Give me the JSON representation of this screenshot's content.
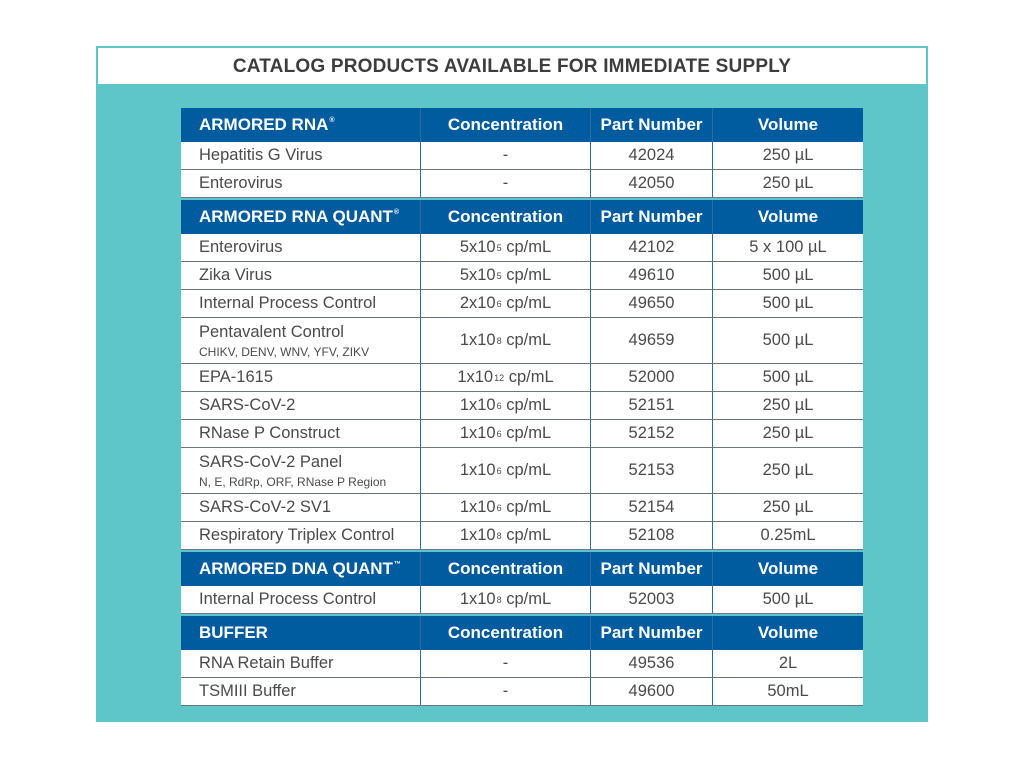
{
  "title": "CATALOG PRODUCTS AVAILABLE FOR IMMEDIATE SUPPLY",
  "colors": {
    "panel": "#5ec6c9",
    "header": "#005b9f"
  },
  "columns": [
    "Concentration",
    "Part Number",
    "Volume"
  ],
  "sections": [
    {
      "name": "ARMORED RNA",
      "mark": "®",
      "rows": [
        {
          "product": "Hepatitis G Virus",
          "conc": {
            "text": "-"
          },
          "part": "42024",
          "volume": "250 µL"
        },
        {
          "product": "Enterovirus",
          "conc": {
            "text": "-"
          },
          "part": "42050",
          "volume": "250 µL"
        }
      ]
    },
    {
      "name": "ARMORED RNA QUANT",
      "mark": "®",
      "rows": [
        {
          "product": "Enterovirus",
          "conc": {
            "base": "5x10",
            "exp": "5",
            "unit": " cp/mL"
          },
          "part": "42102",
          "volume": "5 x 100 µL"
        },
        {
          "product": "Zika Virus",
          "conc": {
            "base": "5x10",
            "exp": "5",
            "unit": " cp/mL"
          },
          "part": "49610",
          "volume": "500 µL"
        },
        {
          "product": "Internal Process Control",
          "conc": {
            "base": "2x10",
            "exp": "6",
            "unit": " cp/mL"
          },
          "part": "49650",
          "volume": "500 µL"
        },
        {
          "product": "Pentavalent Control",
          "subtitle": "CHIKV, DENV, WNV, YFV, ZIKV",
          "conc": {
            "base": "1x10",
            "exp": "8",
            "unit": " cp/mL"
          },
          "part": "49659",
          "volume": "500 µL"
        },
        {
          "product": "EPA-1615",
          "conc": {
            "base": "1x10",
            "exp": "12",
            "unit": " cp/mL"
          },
          "part": "52000",
          "volume": "500 µL"
        },
        {
          "product": "SARS-CoV-2",
          "conc": {
            "base": "1x10",
            "exp": "6",
            "unit": " cp/mL"
          },
          "part": "52151",
          "volume": "250 µL"
        },
        {
          "product": "RNase P Construct",
          "conc": {
            "base": "1x10",
            "exp": "6",
            "unit": " cp/mL"
          },
          "part": "52152",
          "volume": "250 µL"
        },
        {
          "product": "SARS-CoV-2 Panel",
          "subtitle": "N, E, RdRp, ORF, RNase P Region",
          "conc": {
            "base": "1x10",
            "exp": "6",
            "unit": " cp/mL"
          },
          "part": "52153",
          "volume": "250 µL"
        },
        {
          "product": "SARS-CoV-2 SV1",
          "conc": {
            "base": "1x10",
            "exp": "6",
            "unit": " cp/mL"
          },
          "part": "52154",
          "volume": "250 µL"
        },
        {
          "product": "Respiratory Triplex Control",
          "conc": {
            "base": "1x10",
            "exp": "8",
            "unit": " cp/mL"
          },
          "part": "52108",
          "volume": "0.25mL"
        }
      ]
    },
    {
      "name": "ARMORED DNA QUANT",
      "mark": "™",
      "rows": [
        {
          "product": "Internal Process Control",
          "conc": {
            "base": "1x10",
            "exp": "8",
            "unit": " cp/mL"
          },
          "part": "52003",
          "volume": "500 µL"
        }
      ]
    },
    {
      "name": "BUFFER",
      "mark": "",
      "rows": [
        {
          "product": "RNA Retain Buffer",
          "conc": {
            "text": "-"
          },
          "part": "49536",
          "volume": "2L"
        },
        {
          "product": "TSMIII Buffer",
          "conc": {
            "text": "-"
          },
          "part": "49600",
          "volume": "50mL"
        }
      ]
    }
  ]
}
